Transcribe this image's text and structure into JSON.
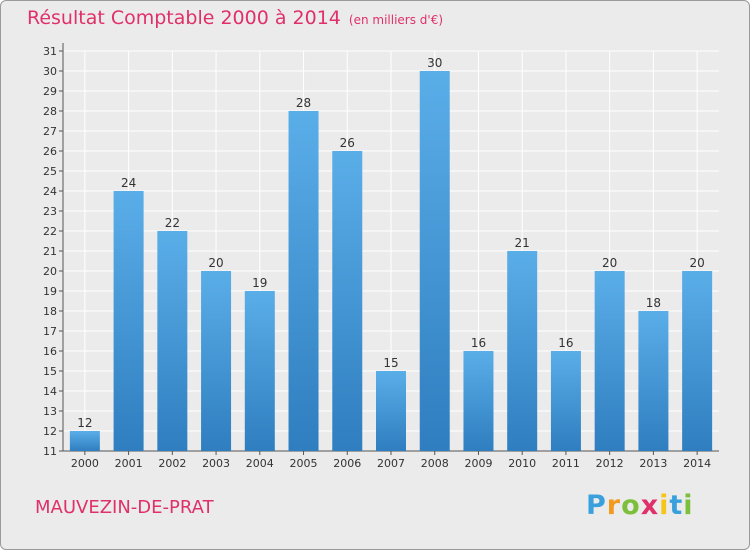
{
  "chart_data": {
    "type": "bar",
    "title": "Résultat Comptable 2000 à 2014",
    "subtitle": "(en milliers d'€)",
    "categories": [
      "2000",
      "2001",
      "2002",
      "2003",
      "2004",
      "2005",
      "2006",
      "2007",
      "2008",
      "2009",
      "2010",
      "2011",
      "2012",
      "2013",
      "2014"
    ],
    "values": [
      12,
      24,
      22,
      20,
      19,
      28,
      26,
      15,
      30,
      16,
      21,
      16,
      20,
      18,
      20
    ],
    "ylim": [
      11,
      31
    ],
    "yticks": [
      11,
      12,
      13,
      14,
      15,
      16,
      17,
      18,
      19,
      20,
      21,
      22,
      23,
      24,
      25,
      26,
      27,
      28,
      29,
      30,
      31
    ],
    "xlabel": "",
    "ylabel": "",
    "grid": true,
    "colors": {
      "bar_light": "#5aaee8",
      "bar_dark": "#2f7ec0",
      "grid": "#ffffff",
      "title": "#e0306a"
    }
  },
  "commune": "MAUVEZIN-DE-PRAT",
  "logo": {
    "letters": [
      "P",
      "r",
      "o",
      "x",
      "i",
      "t",
      "i"
    ],
    "colors": [
      "#3aa0dc",
      "#f29a1f",
      "#7cbf3a",
      "#e0306a",
      "#f5c518",
      "#3aa0dc",
      "#7cbf3a"
    ]
  }
}
